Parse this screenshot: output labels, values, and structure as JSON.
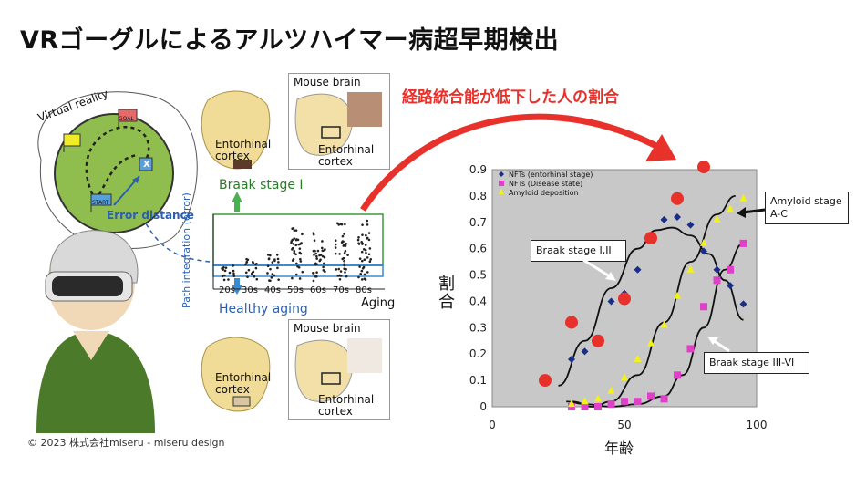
{
  "title": "VRゴーグルによるアルツハイマー病超早期検出",
  "red_caption": "経路統合能が低下した人の割合",
  "copyright": "© 2023 株式会社miseru - miseru design",
  "left_panel": {
    "virtual_reality": "Virtual reality",
    "goal": "GOAL",
    "start": "START",
    "x_mark": "X",
    "error_distance": "Error distance"
  },
  "brain_top": {
    "mouse_brain": "Mouse brain",
    "entorhinal1": "Entorhinal",
    "cortex1": "cortex",
    "entorhinal2": "Entorhinal",
    "cortex2": "cortex"
  },
  "brain_bottom": {
    "mouse_brain": "Mouse brain",
    "entorhinal1": "Entorhinal",
    "cortex1": "cortex",
    "entorhinal2": "Entorhinal",
    "cortex2": "cortex"
  },
  "middle_plot": {
    "braak_stage": "Braak stage Ⅰ",
    "healthy_aging": "Healthy aging",
    "y_label": "Path integration (error)",
    "aging": "Aging",
    "age_groups": [
      "20s",
      "30s",
      "40s",
      "50s",
      "60s",
      "70s",
      "80s"
    ]
  },
  "chart_data": {
    "type": "scatter",
    "xlabel": "年齢",
    "ylabel": "割合",
    "xlim": [
      0,
      100
    ],
    "ylim": [
      0,
      0.9
    ],
    "x_ticks": [
      "0",
      "50",
      "100"
    ],
    "y_ticks": [
      "0",
      "0.1",
      "0.2",
      "0.3",
      "0.4",
      "0.5",
      "0.6",
      "0.7",
      "0.8",
      "0.9"
    ],
    "legend": [
      "NFTs (entorhinal stage)",
      "NFTs (Disease state)",
      "Amyloid deposition"
    ],
    "series": [
      {
        "name": "NFTs (entorhinal stage)",
        "color": "#1a2d8a",
        "marker": "diamond",
        "points": [
          [
            30,
            0.18
          ],
          [
            35,
            0.21
          ],
          [
            45,
            0.4
          ],
          [
            50,
            0.43
          ],
          [
            55,
            0.52
          ],
          [
            65,
            0.71
          ],
          [
            70,
            0.72
          ],
          [
            75,
            0.69
          ],
          [
            80,
            0.59
          ],
          [
            85,
            0.52
          ],
          [
            90,
            0.46
          ],
          [
            95,
            0.39
          ]
        ]
      },
      {
        "name": "NFTs (Disease state)",
        "color": "#e040c8",
        "marker": "square",
        "points": [
          [
            30,
            0.0
          ],
          [
            35,
            0.0
          ],
          [
            40,
            0.0
          ],
          [
            45,
            0.01
          ],
          [
            50,
            0.02
          ],
          [
            55,
            0.02
          ],
          [
            60,
            0.04
          ],
          [
            65,
            0.03
          ],
          [
            70,
            0.12
          ],
          [
            75,
            0.22
          ],
          [
            80,
            0.38
          ],
          [
            85,
            0.48
          ],
          [
            90,
            0.52
          ],
          [
            95,
            0.62
          ]
        ]
      },
      {
        "name": "Amyloid deposition",
        "color": "#f2f21a",
        "marker": "triangle",
        "points": [
          [
            30,
            0.01
          ],
          [
            35,
            0.02
          ],
          [
            40,
            0.03
          ],
          [
            45,
            0.06
          ],
          [
            50,
            0.11
          ],
          [
            55,
            0.18
          ],
          [
            60,
            0.24
          ],
          [
            65,
            0.31
          ],
          [
            70,
            0.42
          ],
          [
            75,
            0.52
          ],
          [
            80,
            0.62
          ],
          [
            85,
            0.71
          ],
          [
            90,
            0.75
          ],
          [
            95,
            0.79
          ]
        ]
      },
      {
        "color": "#e8312a",
        "marker": "circle",
        "points": [
          [
            20,
            0.1
          ],
          [
            30,
            0.32
          ],
          [
            40,
            0.25
          ],
          [
            50,
            0.41
          ],
          [
            60,
            0.64
          ],
          [
            70,
            0.79
          ],
          [
            80,
            0.91
          ]
        ]
      }
    ],
    "curves": [
      {
        "points": [
          [
            25,
            0.08
          ],
          [
            35,
            0.25
          ],
          [
            45,
            0.45
          ],
          [
            55,
            0.6
          ],
          [
            62,
            0.67
          ],
          [
            68,
            0.68
          ],
          [
            75,
            0.65
          ],
          [
            82,
            0.58
          ],
          [
            88,
            0.48
          ],
          [
            95,
            0.33
          ]
        ]
      },
      {
        "points": [
          [
            30,
            0.02
          ],
          [
            38,
            0.0
          ],
          [
            45,
            0.02
          ],
          [
            55,
            0.12
          ],
          [
            65,
            0.32
          ],
          [
            75,
            0.55
          ],
          [
            85,
            0.73
          ],
          [
            92,
            0.8
          ]
        ]
      },
      {
        "points": [
          [
            28,
            0.02
          ],
          [
            35,
            0.01
          ],
          [
            45,
            0.0
          ],
          [
            55,
            0.01
          ],
          [
            65,
            0.04
          ],
          [
            72,
            0.12
          ],
          [
            80,
            0.3
          ],
          [
            88,
            0.52
          ],
          [
            95,
            0.62
          ]
        ]
      }
    ],
    "annotations": {
      "braak_early": "Braak stage I,II",
      "braak_late": "Braak stage III-VI",
      "amyloid_line1": "Amyloid stage",
      "amyloid_line2": "A-C"
    }
  }
}
